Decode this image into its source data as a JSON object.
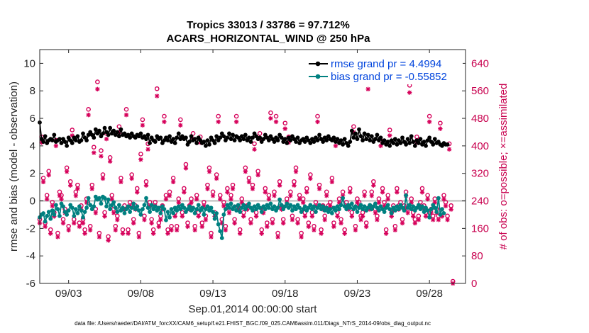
{
  "chart_data": {
    "type": "line",
    "title_line1": "Tropics 33013 / 33786 = 97.712%",
    "title_line2": "ACARS_HORIZONTAL_WIND @ 250 hPa",
    "xlabel": "Sep.01,2014 00:00:00 start",
    "ylabel": "rmse and bias (model - observation)",
    "y2label": "# of obs: o=possible; ×=assimilated",
    "footnote": "data file: /Users/raeder/DAI/ATM_forcXX/CAM6_setup/f.e21.FHIST_BGC.f09_025.CAM6assim.011/Diags_NTrS_2014-09/obs_diag_output.nc",
    "xlim": [
      1.0,
      30.5
    ],
    "ylim": [
      -6,
      11
    ],
    "y2lim": [
      0,
      680
    ],
    "x_ticks": [
      3,
      8,
      13,
      18,
      23,
      28
    ],
    "x_tick_labels": [
      "09/03",
      "09/08",
      "09/13",
      "09/18",
      "09/23",
      "09/28"
    ],
    "y_ticks": [
      -6,
      -4,
      -2,
      0,
      2,
      4,
      6,
      8,
      10
    ],
    "y_tick_labels": [
      "-6",
      "-4",
      "-2",
      "0",
      "2",
      "4",
      "6",
      "8",
      "10"
    ],
    "y2_ticks": [
      0,
      80,
      160,
      240,
      320,
      400,
      480,
      560,
      640
    ],
    "y2_tick_labels": [
      "0",
      "80",
      "160",
      "240",
      "320",
      "400",
      "480",
      "560",
      "640"
    ],
    "legend": {
      "position": "top-right",
      "entries": [
        "rmse grand pr = 4.4994",
        "bias grand pr = -0.55852"
      ]
    },
    "colors": {
      "rmse": "#000000",
      "bias": "#008080",
      "obs": "#d6005a",
      "zero_line": "#bbbbbb"
    },
    "x_start": 1.0,
    "x_step": 0.125,
    "series": [
      {
        "name": "rmse",
        "values": [
          5.7,
          4.5,
          4.3,
          4.7,
          4.2,
          4.4,
          4.5,
          4.4,
          4.8,
          4.3,
          4.4,
          4.5,
          4.2,
          4.5,
          4.3,
          4.0,
          4.6,
          4.4,
          4.2,
          4.6,
          4.4,
          4.7,
          4.3,
          4.4,
          4.9,
          4.6,
          4.4,
          4.8,
          5.0,
          4.8,
          4.6,
          5.2,
          4.9,
          5.1,
          4.7,
          4.9,
          5.3,
          5.0,
          4.8,
          5.3,
          4.9,
          5.1,
          4.8,
          5.0,
          4.7,
          5.2,
          4.8,
          4.9,
          4.7,
          4.8,
          4.6,
          4.9,
          4.7,
          4.6,
          4.8,
          4.7,
          4.9,
          4.6,
          4.7,
          4.5,
          4.8,
          4.2,
          4.6,
          4.4,
          4.3,
          4.7,
          4.5,
          4.6,
          4.2,
          4.4,
          4.6,
          4.4,
          4.7,
          4.3,
          4.5,
          4.2,
          4.6,
          4.9,
          4.5,
          4.7,
          4.5,
          4.6,
          4.1,
          4.3,
          4.7,
          4.4,
          4.5,
          4.2,
          4.6,
          4.4,
          4.2,
          4.3,
          4.0,
          4.4,
          4.1,
          4.6,
          4.4,
          4.2,
          4.7,
          4.4,
          4.6,
          4.9,
          4.7,
          4.4,
          4.6,
          4.9,
          4.5,
          4.8,
          4.4,
          4.7,
          4.6,
          4.4,
          4.7,
          4.5,
          4.8,
          4.4,
          4.6,
          4.3,
          4.6,
          4.9,
          4.7,
          4.5,
          4.6,
          4.3,
          4.5,
          4.8,
          4.6,
          4.4,
          4.7,
          4.5,
          4.3,
          4.6,
          4.4,
          4.8,
          4.6,
          4.3,
          4.5,
          4.2,
          4.6,
          4.4,
          4.7,
          4.5,
          4.3,
          4.6,
          4.2,
          4.4,
          4.5,
          4.3,
          4.6,
          4.4,
          4.2,
          4.5,
          4.3,
          4.6,
          4.4,
          4.8,
          4.5,
          4.3,
          4.6,
          4.4,
          4.7,
          4.5,
          4.4,
          4.6,
          4.3,
          4.5,
          4.2,
          4.4,
          4.1,
          4.5,
          4.2,
          4.0,
          4.3,
          5.1,
          4.6,
          4.9,
          4.5,
          5.2,
          4.7,
          4.4,
          4.9,
          4.5,
          4.8,
          4.4,
          4.7,
          4.3,
          4.5,
          4.8,
          4.4,
          4.6,
          4.2,
          4.4,
          4.1,
          4.3,
          4.0,
          4.4,
          4.2,
          4.5,
          4.1,
          4.4,
          4.2,
          4.6,
          4.3,
          4.1,
          4.5,
          4.2,
          4.7,
          4.3,
          4.0,
          4.4,
          4.2,
          4.5,
          4.1,
          4.3,
          4.0,
          4.4,
          4.6,
          4.3,
          4.1,
          4.5,
          4.2,
          4.3,
          4.1,
          4.0,
          4.2,
          4.1,
          4.1
        ]
      },
      {
        "name": "bias",
        "values": [
          -1.2,
          -1.0,
          -0.9,
          -1.5,
          -1.1,
          -0.8,
          -1.3,
          -0.7,
          -1.0,
          -0.3,
          -0.6,
          -1.1,
          -0.2,
          -0.4,
          -0.8,
          -1.0,
          -0.7,
          -0.3,
          -0.5,
          -1.1,
          -0.6,
          -0.9,
          -0.4,
          -0.7,
          -1.2,
          -0.8,
          -0.5,
          0.2,
          -0.3,
          -0.6,
          -0.4,
          0.3,
          0.1,
          0.2,
          -0.2,
          0.3,
          0.2,
          -0.4,
          0.1,
          -0.6,
          -0.3,
          -0.1,
          -0.5,
          -0.8,
          -0.3,
          -0.7,
          -0.5,
          -0.9,
          -0.6,
          -0.4,
          -0.8,
          -0.5,
          -0.2,
          -0.6,
          -0.4,
          -0.7,
          -1.0,
          -0.6,
          -0.3,
          0.2,
          -0.5,
          -0.8,
          -0.3,
          -0.6,
          -0.4,
          -0.7,
          -0.5,
          -0.9,
          -0.4,
          -0.6,
          -1.4,
          -0.8,
          -1.2,
          -0.6,
          -0.9,
          -0.5,
          -0.7,
          -0.4,
          -0.6,
          -0.3,
          -0.5,
          -0.8,
          -0.6,
          -0.4,
          -0.7,
          -0.5,
          -0.9,
          -0.6,
          -0.3,
          -0.7,
          -0.5,
          -1.0,
          -0.6,
          -0.4,
          -0.7,
          -0.5,
          -0.8,
          -1.3,
          -0.9,
          -1.7,
          -2.2,
          -2.7,
          -1.0,
          -0.6,
          -0.3,
          -0.5,
          -0.2,
          -0.6,
          -0.4,
          -0.7,
          -0.3,
          -0.8,
          -0.5,
          -0.3,
          -0.6,
          -0.4,
          -0.2,
          -0.5,
          -0.7,
          -0.4,
          -0.6,
          -0.3,
          -0.5,
          -0.8,
          -0.4,
          -0.6,
          -0.3,
          -0.5,
          -0.2,
          -0.6,
          -0.4,
          -0.7,
          -0.5,
          0.1,
          -0.3,
          -0.6,
          -0.4,
          -0.2,
          -0.5,
          -0.3,
          -0.7,
          -0.4,
          -0.6,
          -0.3,
          -0.5,
          -0.8,
          -0.6,
          -0.4,
          -0.7,
          -0.5,
          -0.3,
          -0.6,
          -0.4,
          -0.8,
          -0.5,
          -0.3,
          -0.6,
          -0.4,
          -0.7,
          -0.5,
          -0.8,
          -0.6,
          -0.9,
          -0.5,
          -0.7,
          -0.4,
          -0.6,
          -0.3,
          0.2,
          -0.4,
          -0.6,
          -0.3,
          -0.5,
          -0.2,
          -0.6,
          -0.4,
          -0.8,
          -0.5,
          -0.3,
          -0.6,
          -0.4,
          -0.7,
          -0.5,
          -0.3,
          -0.6,
          -0.4,
          -0.2,
          -0.5,
          -0.7,
          -0.4,
          -0.6,
          -0.8,
          -0.5,
          -0.3,
          -0.6,
          -0.9,
          -0.5,
          -0.7,
          -0.4,
          -0.6,
          -0.3,
          -0.5,
          -0.7,
          0.4,
          -0.5,
          -0.3,
          -0.6,
          -0.4,
          -0.7,
          -0.5,
          -0.3,
          -0.6,
          -0.4,
          -0.8,
          -0.5,
          -0.7,
          -1.2,
          -0.6,
          -0.3,
          -0.5,
          -0.8,
          0.2,
          -1.0,
          -0.6,
          -0.9
        ]
      },
      {
        "name": "obs_possible",
        "y_axis": "right",
        "values": [
          180,
          420,
          300,
          170,
          250,
          320,
          150,
          230,
          200,
          410,
          140,
          260,
          250,
          180,
          210,
          330,
          160,
          290,
          440,
          180,
          260,
          280,
          170,
          220,
          180,
          150,
          240,
          500,
          160,
          280,
          390,
          210,
          580,
          140,
          380,
          310,
          200,
          430,
          130,
          360,
          250,
          210,
          160,
          190,
          450,
          300,
          150,
          220,
          500,
          150,
          230,
          310,
          180,
          220,
          270,
          140,
          370,
          470,
          190,
          290,
          400,
          230,
          180,
          150,
          230,
          560,
          170,
          190,
          220,
          480,
          250,
          150,
          260,
          160,
          300,
          200,
          160,
          240,
          470,
          200,
          270,
          340,
          170,
          220,
          240,
          430,
          160,
          250,
          200,
          420,
          170,
          230,
          190,
          280,
          330,
          140,
          260,
          200,
          310,
          480,
          250,
          180,
          230,
          160,
          270,
          210,
          250,
          280,
          180,
          480,
          220,
          150,
          240,
          200,
          330,
          220,
          300,
          180,
          280,
          400,
          200,
          320,
          430,
          150,
          210,
          270,
          170,
          250,
          490,
          180,
          260,
          480,
          140,
          290,
          220,
          180,
          460,
          240,
          420,
          260,
          190,
          290,
          330,
          180,
          250,
          140,
          240,
          200,
          270,
          170,
          310,
          200,
          160,
          230,
          480,
          280,
          150,
          220,
          190,
          260,
          220,
          230,
          300,
          170,
          410,
          200,
          240,
          180,
          260,
          150,
          230,
          220,
          270,
          200,
          450,
          160,
          240,
          230,
          190,
          200,
          260,
          170,
          580,
          220,
          260,
          290,
          210,
          190,
          240,
          410,
          270,
          230,
          150,
          250,
          440,
          200,
          220,
          160,
          270,
          220,
          230,
          180,
          220,
          260,
          210,
          570,
          240,
          200,
          180,
          420,
          190,
          230,
          270,
          220,
          200,
          250,
          480,
          210,
          190,
          240,
          210,
          190,
          460,
          200,
          250,
          230,
          190,
          400,
          220,
          0
        ]
      },
      {
        "name": "obs_assimilated",
        "y_axis": "right",
        "values": [
          175,
          410,
          295,
          165,
          245,
          315,
          145,
          225,
          195,
          400,
          135,
          255,
          245,
          175,
          205,
          325,
          155,
          285,
          430,
          175,
          255,
          275,
          165,
          215,
          175,
          145,
          235,
          490,
          155,
          275,
          380,
          205,
          565,
          135,
          370,
          305,
          195,
          420,
          125,
          355,
          245,
          205,
          155,
          185,
          440,
          295,
          145,
          215,
          490,
          145,
          225,
          305,
          175,
          215,
          265,
          135,
          360,
          460,
          185,
          285,
          390,
          225,
          175,
          145,
          225,
          545,
          165,
          185,
          215,
          470,
          245,
          145,
          255,
          155,
          295,
          195,
          155,
          235,
          460,
          195,
          265,
          335,
          165,
          215,
          235,
          420,
          155,
          245,
          195,
          410,
          165,
          225,
          185,
          275,
          325,
          135,
          255,
          195,
          305,
          470,
          245,
          175,
          225,
          155,
          265,
          205,
          245,
          275,
          175,
          470,
          215,
          145,
          235,
          195,
          325,
          215,
          295,
          175,
          275,
          390,
          195,
          315,
          420,
          145,
          205,
          265,
          165,
          245,
          480,
          175,
          255,
          470,
          135,
          285,
          215,
          175,
          450,
          235,
          410,
          255,
          185,
          285,
          325,
          175,
          245,
          135,
          235,
          195,
          265,
          165,
          305,
          195,
          155,
          225,
          470,
          275,
          145,
          215,
          185,
          255,
          215,
          225,
          295,
          165,
          400,
          195,
          235,
          175,
          255,
          145,
          225,
          215,
          265,
          195,
          440,
          155,
          235,
          225,
          185,
          195,
          255,
          165,
          565,
          215,
          255,
          285,
          205,
          185,
          235,
          400,
          265,
          225,
          145,
          245,
          430,
          195,
          215,
          155,
          265,
          215,
          225,
          175,
          215,
          255,
          205,
          555,
          235,
          195,
          175,
          410,
          185,
          225,
          265,
          215,
          195,
          245,
          470,
          205,
          185,
          235,
          205,
          185,
          450,
          195,
          245,
          225,
          185,
          390,
          215,
          0
        ]
      }
    ]
  }
}
